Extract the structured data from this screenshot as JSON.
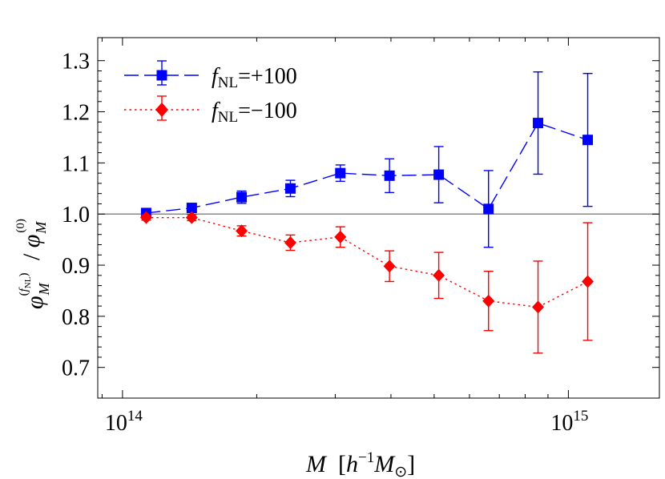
{
  "chart_data": {
    "type": "scatter",
    "x_scale": "log",
    "xlim": [
      88000000000000,
      1600000000000000
    ],
    "ylim": [
      0.64,
      1.345
    ],
    "x_ticks": [
      {
        "value": 100000000000000,
        "base": "10",
        "exp": "14"
      },
      {
        "value": 1000000000000000,
        "base": "10",
        "exp": "15"
      }
    ],
    "y_ticks": [
      0.7,
      0.8,
      0.9,
      1.0,
      1.1,
      1.2,
      1.3
    ],
    "y_tick_labels": [
      "0.7",
      "0.8",
      "0.9",
      "1.0",
      "1.1",
      "1.2",
      "1.3"
    ],
    "reference_line_y": 1.0,
    "xlabel": "M  [h⁻¹M⊙]",
    "ylabel": "φ_M^(f_NL) / φ_M^(0)",
    "legend_position": "top-left",
    "series": [
      {
        "name": "f_NL=+100",
        "color": "#0000ff",
        "marker": "square",
        "line_style": "long-dash",
        "x": [
          113000000000000,
          143000000000000,
          185000000000000,
          238000000000000,
          308000000000000,
          397000000000000,
          512000000000000,
          662000000000000,
          855000000000000,
          1105000000000000
        ],
        "y": [
          1.002,
          1.012,
          1.033,
          1.05,
          1.08,
          1.075,
          1.077,
          1.01,
          1.178,
          1.145
        ],
        "err": [
          0.005,
          0.006,
          0.012,
          0.016,
          0.016,
          0.033,
          0.055,
          0.075,
          0.1,
          0.13
        ]
      },
      {
        "name": "f_NL=-100",
        "color": "#ff0000",
        "marker": "diamond",
        "line_style": "dotted",
        "x": [
          113000000000000,
          143000000000000,
          185000000000000,
          238000000000000,
          308000000000000,
          397000000000000,
          512000000000000,
          662000000000000,
          855000000000000,
          1105000000000000
        ],
        "y": [
          0.993,
          0.993,
          0.967,
          0.944,
          0.955,
          0.898,
          0.88,
          0.83,
          0.818,
          0.868
        ],
        "err": [
          0.005,
          0.006,
          0.01,
          0.015,
          0.02,
          0.03,
          0.045,
          0.058,
          0.09,
          0.115
        ]
      }
    ],
    "legend_entries": [
      {
        "prefix": "f",
        "sub": "NL",
        "suffix": "=+100"
      },
      {
        "prefix": "f",
        "sub": "NL",
        "suffix": "=−100"
      }
    ]
  }
}
